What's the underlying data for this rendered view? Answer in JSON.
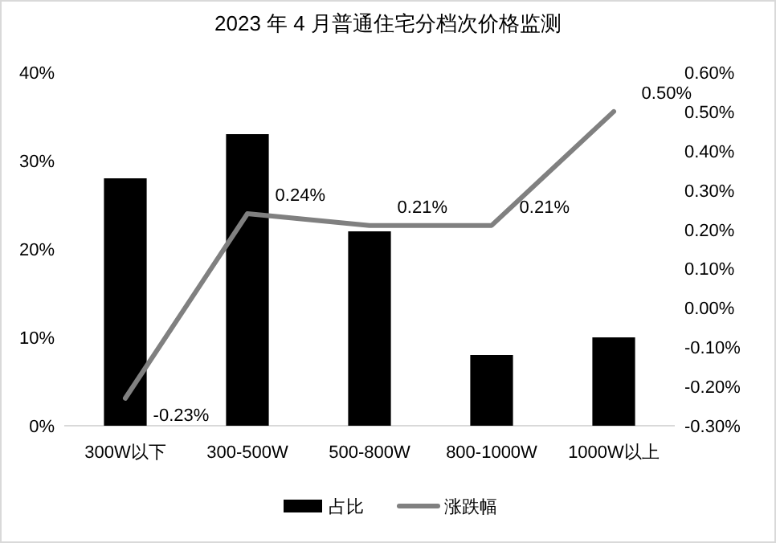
{
  "chart_data": {
    "type": "bar",
    "title": "2023 年 4 月普通住宅分档次价格监测",
    "categories": [
      "300W以下",
      "300-500W",
      "500-800W",
      "800-1000W",
      "1000W以上"
    ],
    "series": [
      {
        "name": "占比",
        "color": "#000000",
        "values": [
          28,
          33,
          22,
          8,
          10
        ]
      },
      {
        "name": "涨跌幅",
        "type": "line",
        "axis": "y2",
        "color": "#808080",
        "values": [
          -0.23,
          0.24,
          0.21,
          0.21,
          0.5
        ],
        "value_labels": [
          "-0.23%",
          "0.24%",
          "0.21%",
          "0.21%",
          "0.50%"
        ]
      }
    ],
    "ylim": [
      0,
      40
    ],
    "yticks": [
      {
        "value": 0,
        "label": "0%"
      },
      {
        "value": 10,
        "label": "10%"
      },
      {
        "value": 20,
        "label": "20%"
      },
      {
        "value": 30,
        "label": "30%"
      },
      {
        "value": 40,
        "label": "40%"
      }
    ],
    "y2lim": [
      -0.3,
      0.6
    ],
    "y2ticks": [
      {
        "value": -0.3,
        "label": "-0.30%"
      },
      {
        "value": -0.2,
        "label": "-0.20%"
      },
      {
        "value": -0.1,
        "label": "-0.10%"
      },
      {
        "value": 0,
        "label": "0.00%"
      },
      {
        "value": 0.1,
        "label": "0.10%"
      },
      {
        "value": 0.2,
        "label": "0.20%"
      },
      {
        "value": 0.3,
        "label": "0.30%"
      },
      {
        "value": 0.4,
        "label": "0.40%"
      },
      {
        "value": 0.5,
        "label": "0.50%"
      },
      {
        "value": 0.6,
        "label": "0.60%"
      }
    ],
    "legend": "bottom",
    "marker": "none",
    "line_style": "solid"
  }
}
